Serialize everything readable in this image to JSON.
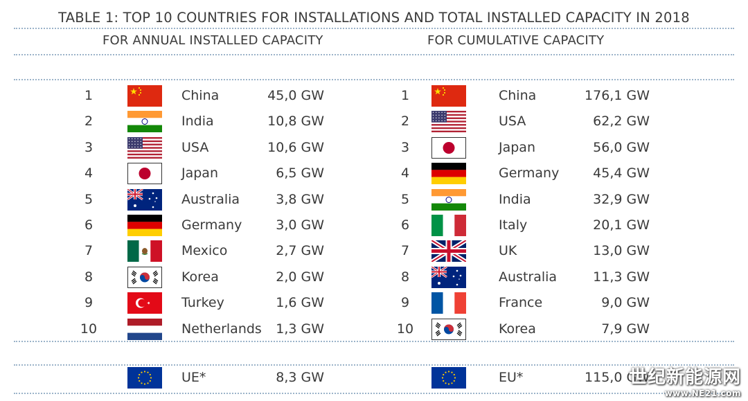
{
  "title": "TABLE 1: TOP 10 COUNTRIES FOR INSTALLATIONS AND TOTAL INSTALLED CAPACITY IN 2018",
  "left_header": "FOR ANNUAL INSTALLED CAPACITY",
  "right_header": "FOR CUMULATIVE CAPACITY",
  "annual": [
    {
      "rank": "1",
      "country": "China",
      "capacity": "45,0 GW",
      "flag": "china-flag-icon"
    },
    {
      "rank": "2",
      "country": "India",
      "capacity": "10,8 GW",
      "flag": "india-flag-icon"
    },
    {
      "rank": "3",
      "country": "USA",
      "capacity": "10,6 GW",
      "flag": "usa-flag-icon"
    },
    {
      "rank": "4",
      "country": "Japan",
      "capacity": "6,5 GW",
      "flag": "japan-flag-icon"
    },
    {
      "rank": "5",
      "country": "Australia",
      "capacity": "3,8 GW",
      "flag": "australia-flag-icon"
    },
    {
      "rank": "6",
      "country": "Germany",
      "capacity": "3,0 GW",
      "flag": "germany-flag-icon"
    },
    {
      "rank": "7",
      "country": "Mexico",
      "capacity": "2,7 GW",
      "flag": "mexico-flag-icon"
    },
    {
      "rank": "8",
      "country": "Korea",
      "capacity": "2,0 GW",
      "flag": "korea-flag-icon"
    },
    {
      "rank": "9",
      "country": "Turkey",
      "capacity": "1,6 GW",
      "flag": "turkey-flag-icon"
    },
    {
      "rank": "10",
      "country": "Netherlands",
      "capacity": "1,3 GW",
      "flag": "netherlands-flag-icon"
    }
  ],
  "cumulative": [
    {
      "rank": "1",
      "country": "China",
      "capacity": "176,1 GW",
      "flag": "china-flag-icon"
    },
    {
      "rank": "2",
      "country": "USA",
      "capacity": "62,2 GW",
      "flag": "usa-flag-icon"
    },
    {
      "rank": "3",
      "country": "Japan",
      "capacity": "56,0 GW",
      "flag": "japan-flag-icon"
    },
    {
      "rank": "4",
      "country": "Germany",
      "capacity": "45,4 GW",
      "flag": "germany-flag-icon"
    },
    {
      "rank": "5",
      "country": "India",
      "capacity": "32,9 GW",
      "flag": "india-flag-icon"
    },
    {
      "rank": "6",
      "country": "Italy",
      "capacity": "20,1 GW",
      "flag": "italy-flag-icon"
    },
    {
      "rank": "7",
      "country": "UK",
      "capacity": "13,0 GW",
      "flag": "uk-flag-icon"
    },
    {
      "rank": "8",
      "country": "Australia",
      "capacity": "11,3 GW",
      "flag": "australia-flag-icon"
    },
    {
      "rank": "9",
      "country": "France",
      "capacity": "9,0 GW",
      "flag": "france-flag-icon"
    },
    {
      "rank": "10",
      "country": "Korea",
      "capacity": "7,9 GW",
      "flag": "korea-flag-icon"
    }
  ],
  "annual_total": {
    "country": "UE*",
    "capacity": "8,3 GW",
    "flag": "eu-flag-icon"
  },
  "cumulative_total": {
    "country": "EU*",
    "capacity": "115,0 GW",
    "flag": "eu-flag-icon"
  },
  "watermark": {
    "text": "世纪新能源网",
    "url": "www.NE21.com"
  },
  "colors": {
    "separator": "#9bb3c9",
    "text": "#3a3a3a"
  }
}
